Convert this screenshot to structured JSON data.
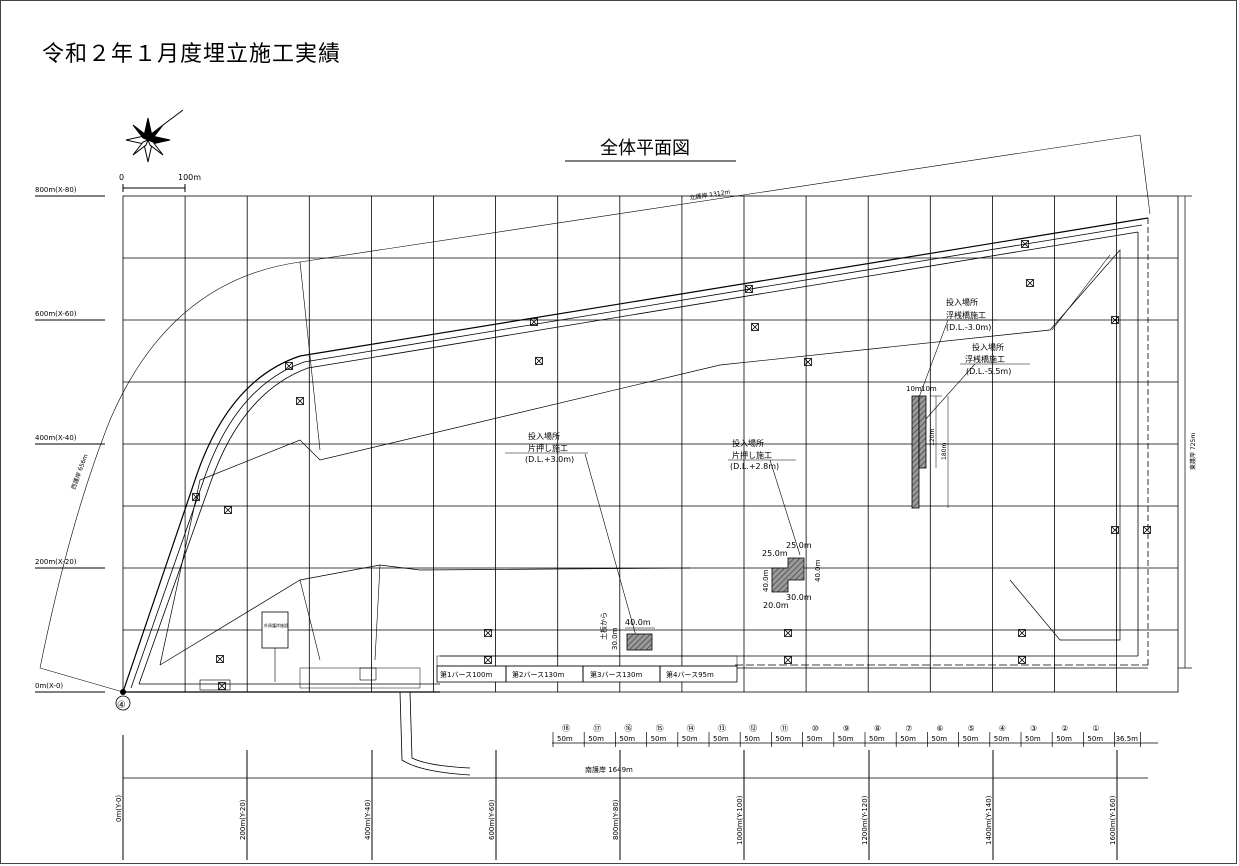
{
  "page": {
    "title": "令和２年１月度埋立施工実績"
  },
  "drawing": {
    "title": "全体平面図",
    "scale_label_zero": "0",
    "scale_label_end": "100m",
    "y_axis_labels": [
      "800m(X-80)",
      "600m(X-60)",
      "400m(X-40)",
      "200m(X-20)",
      "0m(X-0)"
    ],
    "x_axis_labels": [
      "0m(Y-0)",
      "200m(Y-20)",
      "400m(Y-40)",
      "600m(Y-60)",
      "800m(Y-80)",
      "1000m(Y-100)",
      "1200m(Y-120)",
      "1400m(Y-140)",
      "1600m(Y-160)"
    ],
    "point_marker": "④",
    "shore_labels": {
      "north": "北護岸 1312m",
      "west": "西護岸 656m",
      "east": "東護岸 725m",
      "south": "南護岸 1649m"
    },
    "berths": [
      "第1バース100m",
      "第2バース130m",
      "第3バース130m",
      "第4バース95m"
    ],
    "facility_label": "外周護岸施設",
    "section_numbers": [
      "⑱",
      "⑰",
      "⑯",
      "⑮",
      "⑭",
      "⑬",
      "⑫",
      "⑪",
      "⑩",
      "⑨",
      "⑧",
      "⑦",
      "⑥",
      "⑤",
      "④",
      "③",
      "②",
      "①"
    ],
    "section_length": "50m",
    "section_last": "36.5m",
    "callouts": {
      "a": {
        "title": "投入場所",
        "method": "片押し施工",
        "level": "(D.L.+3.0m)"
      },
      "b": {
        "title": "投入場所",
        "method": "片押し施工",
        "level": "(D.L.+2.8m)"
      },
      "c": {
        "title": "投入場所",
        "method": "浮桟橋施工",
        "level": "(D.L.-3.0m)"
      },
      "d": {
        "title": "投入場所",
        "method": "浮桟橋施工",
        "level": "(D.L.-5.5m)"
      }
    },
    "dims": {
      "a_width": "40.0m",
      "a_height": "30.0m",
      "a_note": "土板から",
      "b_top": "25.0m",
      "b_top2": "25.0m",
      "b_left": "40.0m",
      "b_right": "40.0m",
      "b_bottom1": "20.0m",
      "b_bottom2": "30.0m",
      "cd_w1": "10m",
      "cd_w2": "10m",
      "cd_h1": "120m",
      "cd_h2": "180m"
    }
  }
}
